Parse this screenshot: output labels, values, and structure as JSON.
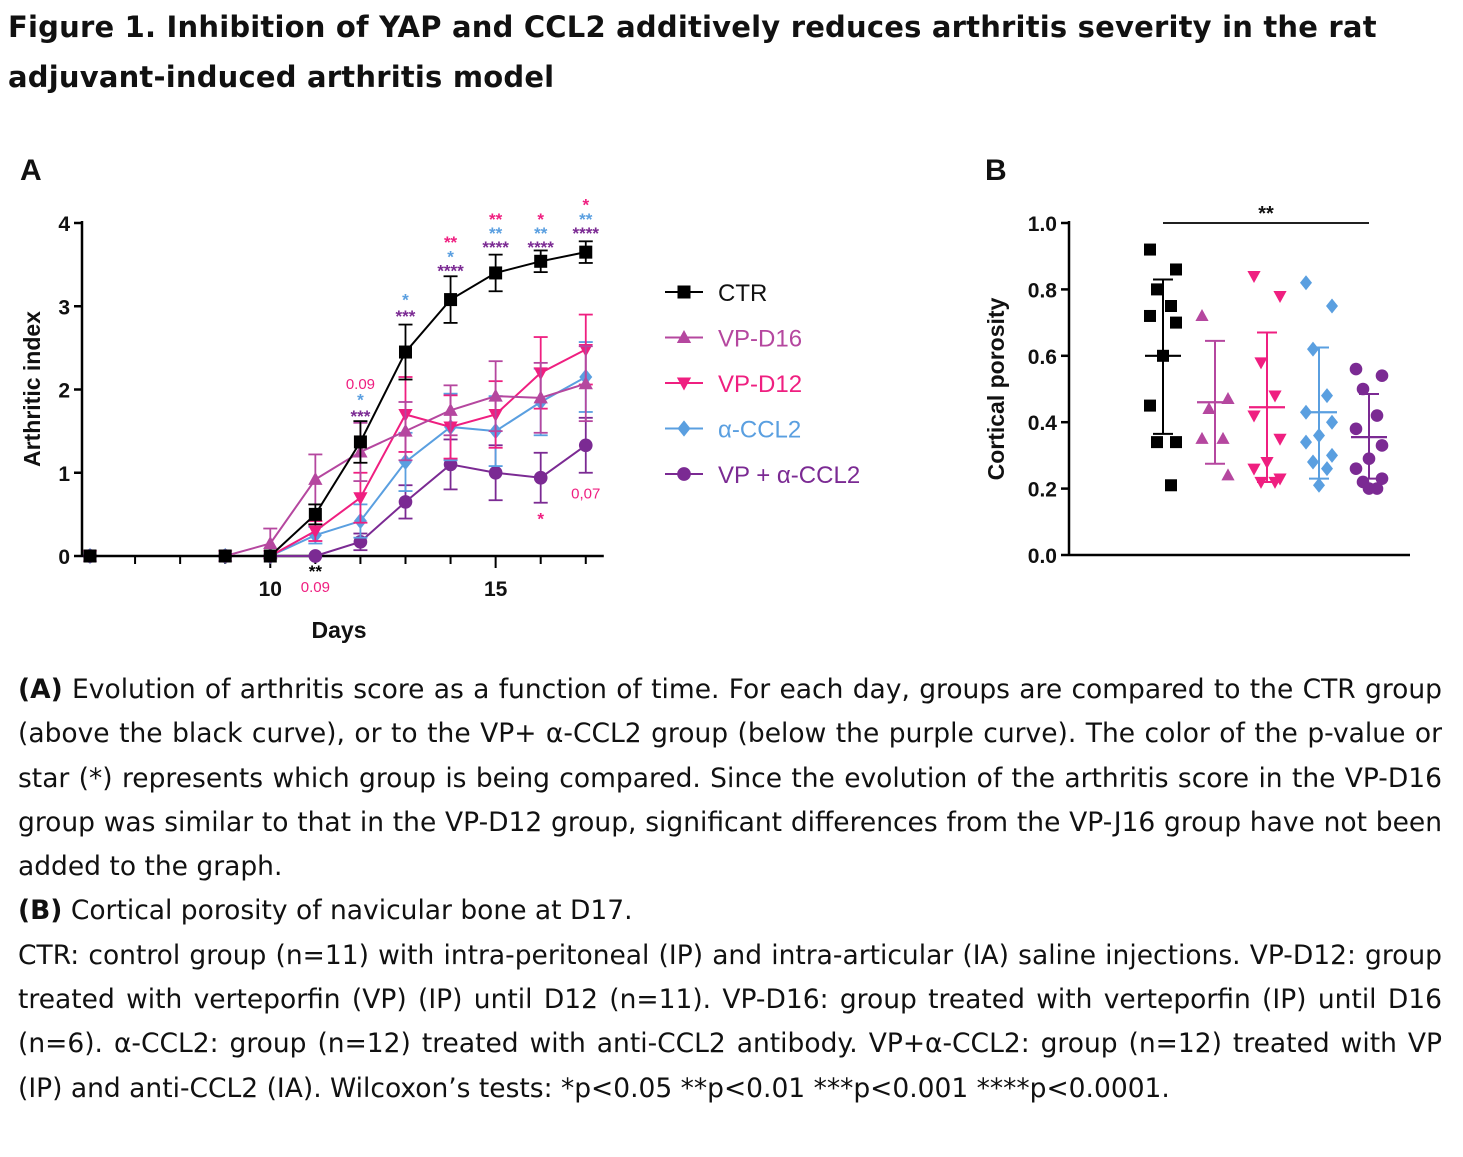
{
  "figure": {
    "title": "Figure 1. Inhibition of YAP and CCL2 additively reduces arthritis severity in the rat adjuvant-induced arthritis model",
    "panel_a_letter": "A",
    "panel_b_letter": "B"
  },
  "colors": {
    "CTR": "#000000",
    "VP-D16": "#b5479f",
    "VP-D12": "#ef1f80",
    "a-CCL2": "#5a9fe0",
    "VP+a-CCL2": "#7b2a93"
  },
  "chart_data": [
    {
      "id": "A",
      "type": "line",
      "xlabel": "Days",
      "ylabel": "Arthritic index",
      "xlim": [
        6,
        17.4
      ],
      "ylim": [
        0,
        4
      ],
      "xticks": [
        10,
        15
      ],
      "yticks": [
        0,
        1,
        2,
        3,
        4
      ],
      "legend_placement": "right",
      "series": [
        {
          "name": "CTR",
          "marker": "square",
          "x": [
            6,
            9,
            10,
            11,
            12,
            13,
            14,
            15,
            16,
            17
          ],
          "values": [
            0,
            0,
            0,
            0.5,
            1.37,
            2.45,
            3.08,
            3.4,
            3.54,
            3.65
          ],
          "err": [
            0,
            0,
            0,
            0.12,
            0.25,
            0.33,
            0.28,
            0.22,
            0.13,
            0.13
          ]
        },
        {
          "name": "VP-D16",
          "marker": "triangle-up",
          "x": [
            6,
            9,
            10,
            11,
            12,
            13,
            14,
            15,
            16,
            17
          ],
          "values": [
            0,
            0,
            0.15,
            0.92,
            1.25,
            1.5,
            1.75,
            1.92,
            1.9,
            2.07
          ],
          "err": [
            0,
            0,
            0.18,
            0.3,
            0.35,
            0.35,
            0.3,
            0.42,
            0.42,
            0.45
          ]
        },
        {
          "name": "VP-D12",
          "marker": "triangle-down",
          "x": [
            6,
            9,
            10,
            11,
            12,
            13,
            14,
            15,
            16,
            17
          ],
          "values": [
            0,
            0,
            0,
            0.3,
            0.7,
            1.7,
            1.55,
            1.7,
            2.2,
            2.48
          ],
          "err": [
            0,
            0,
            0,
            0.12,
            0.3,
            0.45,
            0.38,
            0.4,
            0.43,
            0.42
          ]
        },
        {
          "name": "α-CCL2",
          "marker": "diamond",
          "x": [
            6,
            9,
            10,
            11,
            12,
            13,
            14,
            15,
            16,
            17
          ],
          "values": [
            0,
            0,
            0,
            0.25,
            0.42,
            1.13,
            1.55,
            1.5,
            1.85,
            2.15
          ],
          "err": [
            0,
            0,
            0,
            0.1,
            0.2,
            0.35,
            0.4,
            0.42,
            0.4,
            0.42
          ]
        },
        {
          "name": "VP + α-CCL2",
          "marker": "circle",
          "x": [
            6,
            9,
            10,
            11,
            12,
            13,
            14,
            15,
            16,
            17
          ],
          "values": [
            0,
            0,
            0,
            0,
            0.17,
            0.65,
            1.1,
            1.0,
            0.94,
            1.33
          ],
          "err": [
            0,
            0,
            0,
            0,
            0.1,
            0.2,
            0.3,
            0.33,
            0.3,
            0.33
          ]
        }
      ],
      "annotations": [
        {
          "x": 11,
          "y": -0.18,
          "text": "**",
          "series": "CTR"
        },
        {
          "x": 11,
          "y": -0.36,
          "text": "0.09",
          "series": "VP-D12"
        },
        {
          "x": 12,
          "y": 2.08,
          "text": "0.09",
          "series": "VP-D12"
        },
        {
          "x": 12,
          "y": 1.88,
          "text": "*",
          "series": "α-CCL2"
        },
        {
          "x": 12,
          "y": 1.68,
          "text": "***",
          "series": "VP + α-CCL2"
        },
        {
          "x": 13,
          "y": 3.08,
          "text": "*",
          "series": "α-CCL2"
        },
        {
          "x": 13,
          "y": 2.88,
          "text": "***",
          "series": "VP + α-CCL2"
        },
        {
          "x": 14,
          "y": 3.77,
          "text": "**",
          "series": "VP-D12"
        },
        {
          "x": 14,
          "y": 3.6,
          "text": "*",
          "series": "α-CCL2"
        },
        {
          "x": 14,
          "y": 3.43,
          "text": "****",
          "series": "VP + α-CCL2"
        },
        {
          "x": 15,
          "y": 4.05,
          "text": "**",
          "series": "VP-D12"
        },
        {
          "x": 15,
          "y": 3.88,
          "text": "**",
          "series": "α-CCL2"
        },
        {
          "x": 15,
          "y": 3.71,
          "text": "****",
          "series": "VP + α-CCL2"
        },
        {
          "x": 16,
          "y": 4.05,
          "text": "*",
          "series": "VP-D12"
        },
        {
          "x": 16,
          "y": 3.88,
          "text": "**",
          "series": "α-CCL2"
        },
        {
          "x": 16,
          "y": 3.71,
          "text": "****",
          "series": "VP + α-CCL2"
        },
        {
          "x": 17,
          "y": 4.22,
          "text": "*",
          "series": "VP-D12"
        },
        {
          "x": 17,
          "y": 4.05,
          "text": "**",
          "series": "α-CCL2"
        },
        {
          "x": 17,
          "y": 3.88,
          "text": "****",
          "series": "VP + α-CCL2"
        },
        {
          "x": 16,
          "y": 0.45,
          "text": "*",
          "series": "VP-D12"
        },
        {
          "x": 17,
          "y": 0.76,
          "text": "0,07",
          "series": "VP-D12"
        }
      ]
    },
    {
      "id": "B",
      "type": "scatter",
      "ylabel": "Cortical porosity",
      "ylim": [
        0,
        1.0
      ],
      "yticks": [
        "0.0",
        "0.2",
        "0.4",
        "0.6",
        "0.8",
        "1.0"
      ],
      "groups": [
        {
          "name": "CTR",
          "marker": "square",
          "mean": 0.6,
          "sd_low": 0.365,
          "sd_high": 0.83,
          "points": [
            0.92,
            0.86,
            0.8,
            0.75,
            0.72,
            0.7,
            0.6,
            0.45,
            0.34,
            0.34,
            0.21
          ]
        },
        {
          "name": "VP-D16",
          "marker": "triangle-up",
          "mean": 0.46,
          "sd_low": 0.275,
          "sd_high": 0.645,
          "points": [
            0.72,
            0.47,
            0.44,
            0.35,
            0.35,
            0.24
          ]
        },
        {
          "name": "VP-D12",
          "marker": "triangle-down",
          "mean": 0.445,
          "sd_low": 0.22,
          "sd_high": 0.67,
          "points": [
            0.84,
            0.78,
            0.58,
            0.48,
            0.42,
            0.35,
            0.28,
            0.26,
            0.23,
            0.22,
            0.22
          ]
        },
        {
          "name": "α-CCL2",
          "marker": "diamond",
          "mean": 0.43,
          "sd_low": 0.23,
          "sd_high": 0.625,
          "points": [
            0.82,
            0.75,
            0.62,
            0.48,
            0.43,
            0.4,
            0.36,
            0.34,
            0.3,
            0.28,
            0.26,
            0.21
          ]
        },
        {
          "name": "VP + α-CCL2",
          "marker": "circle",
          "mean": 0.355,
          "sd_low": 0.23,
          "sd_high": 0.485,
          "points": [
            0.56,
            0.54,
            0.5,
            0.42,
            0.38,
            0.33,
            0.29,
            0.26,
            0.23,
            0.22,
            0.2,
            0.2
          ]
        }
      ],
      "significance": {
        "from": "CTR",
        "to": "VP + α-CCL2",
        "text": "**"
      }
    }
  ],
  "caption": {
    "a_label": "(A)",
    "a_text": " Evolution of arthritis score as a function of time. For each day, groups are compared to the CTR group (above the black curve), or to the VP+ α-CCL2 group (below the purple curve). The color of the p-value or star (*) represents which group is being compared. Since the evolution of the arthritis score in the VP-D16 group was similar to that in the VP-D12 group, significant differences from the VP-J16 group have not been added to the graph.",
    "b_label": "(B)",
    "b_text": " Cortical porosity of navicular bone at D17.",
    "groups_text": "CTR: control group (n=11) with intra-peritoneal (IP) and intra-articular (IA) saline injections. VP-D12: group treated with verteporfin (VP) (IP) until D12 (n=11). VP-D16: group treated with verteporfin (IP) until D16 (n=6). α-CCL2: group (n=12) treated with anti-CCL2 antibody. VP+α-CCL2: group (n=12) treated with VP (IP) and anti-CCL2 (IA). Wilcoxon’s tests: *p<0.05 **p<0.01 ***p<0.001 ****p<0.0001."
  }
}
